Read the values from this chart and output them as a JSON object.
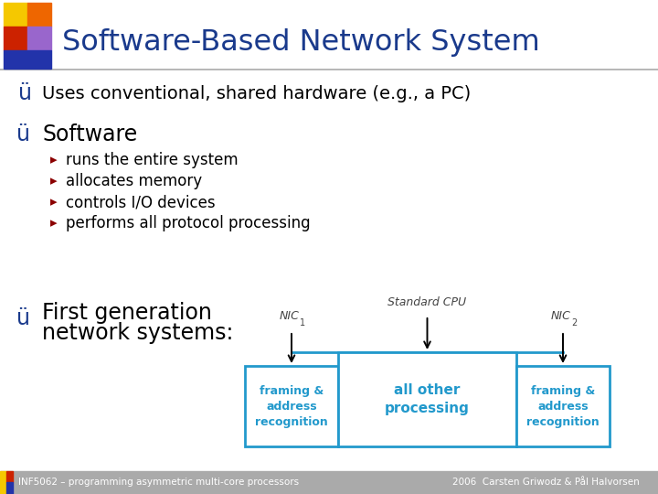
{
  "title": "Software-Based Network System",
  "title_color": "#1a3a8c",
  "bg_color": "#ffffff",
  "bullet1": "Uses conventional, shared hardware (e.g., a PC)",
  "bullet2": "Software",
  "sub_bullets": [
    "runs the entire system",
    "allocates memory",
    "controls I/O devices",
    "performs all protocol processing"
  ],
  "bullet3_line1": "First generation",
  "bullet3_line2": "network systems:",
  "check_color": "#1a3a8c",
  "sub_arrow_color": "#8B0000",
  "text_color": "#000000",
  "box_color": "#2299cc",
  "box_left_text": "framing &\naddress\nrecognition",
  "box_center_text": "all other\nprocessing",
  "box_right_text": "framing &\naddress\nrecognition",
  "footer_left": "INF5062 – programming asymmetric multi-core processors",
  "footer_right": "2006  Carsten Griwodz & Pål Halvorsen",
  "logo_yellow": "#f5c800",
  "logo_red": "#cc2200",
  "logo_orange": "#ee6600",
  "logo_purple": "#9966cc",
  "logo_blue": "#2233aa",
  "footer_gray": "#aaaaaa"
}
